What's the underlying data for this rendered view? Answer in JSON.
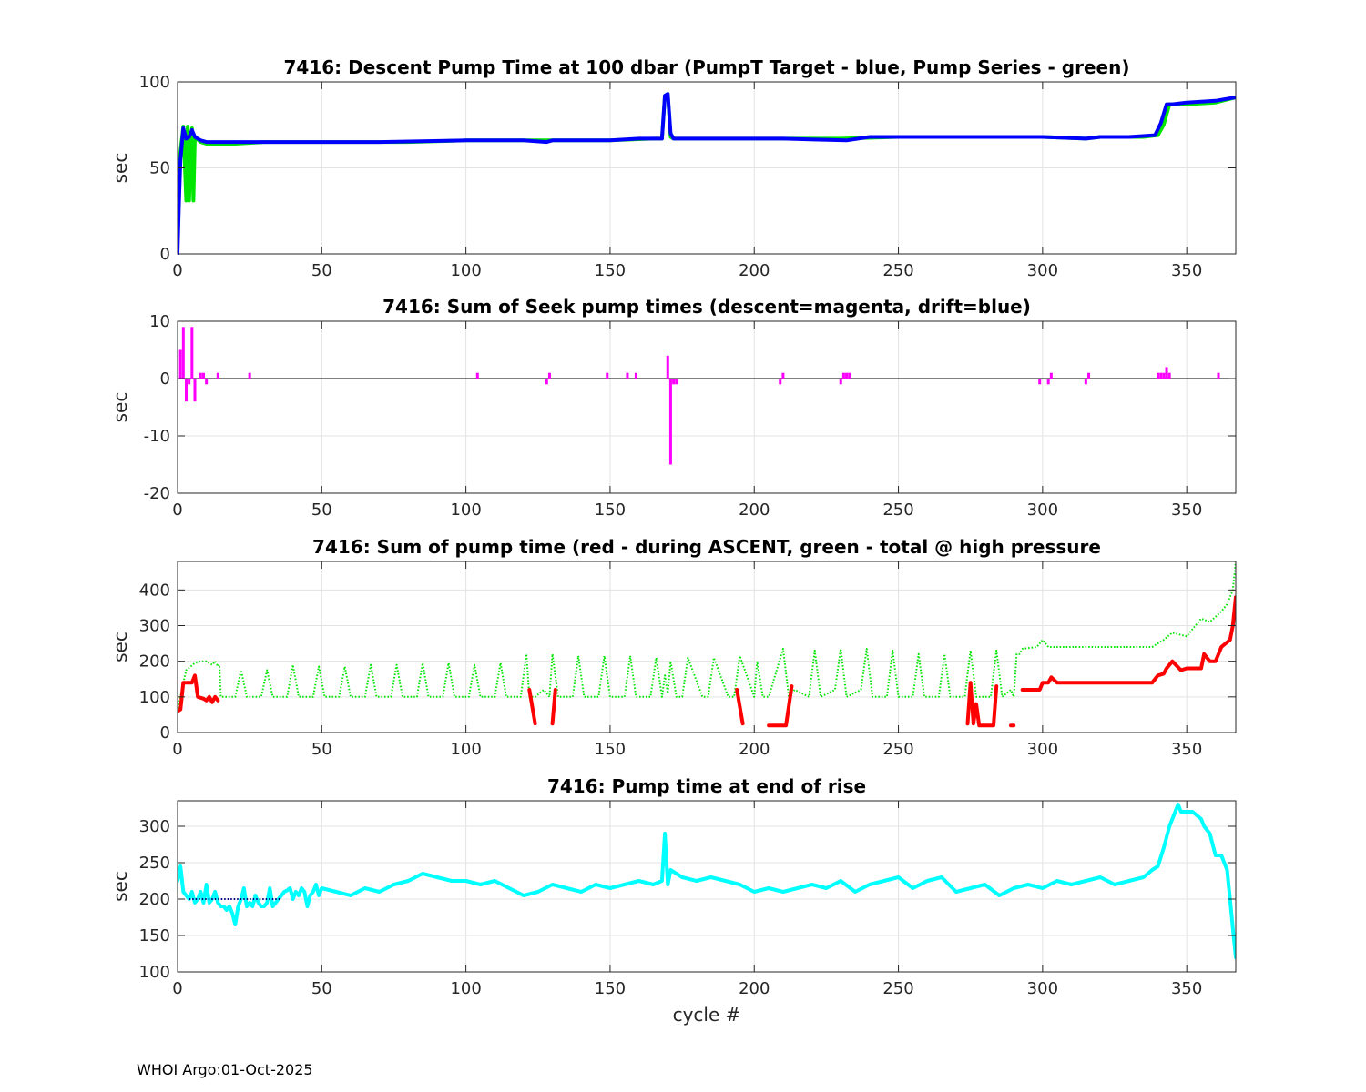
{
  "footer": "WHOI Argo:01-Oct-2025",
  "chart_data": [
    {
      "type": "line",
      "title": "7416: Descent Pump Time at 100 dbar (PumpT Target - blue, Pump Series - green)",
      "xlabel": "",
      "ylabel": "sec",
      "xlim": [
        0,
        367
      ],
      "ylim": [
        0,
        100
      ],
      "xticks": [
        0,
        50,
        100,
        150,
        200,
        250,
        300,
        350
      ],
      "yticks": [
        0,
        50,
        100
      ],
      "grid": true,
      "series": [
        {
          "color": "#00e600",
          "x": [
            0,
            1,
            2,
            3,
            3.5,
            4,
            5,
            5.5,
            6,
            8,
            10,
            20,
            30,
            50,
            80,
            100,
            120,
            150,
            165,
            168,
            169,
            170,
            171,
            172,
            180,
            200,
            230,
            250,
            280,
            300,
            315,
            320,
            335,
            340,
            342,
            344,
            350,
            360,
            367
          ],
          "y": [
            30,
            60,
            74,
            31,
            74,
            31,
            73,
            31,
            68,
            65,
            64,
            64,
            65,
            65,
            65,
            66,
            66,
            66,
            67,
            67,
            92,
            93,
            68,
            67,
            67,
            67,
            67,
            68,
            68,
            68,
            67,
            68,
            68,
            69,
            75,
            87,
            87,
            88,
            91
          ]
        },
        {
          "color": "#0000ff",
          "x": [
            0,
            0.5,
            1,
            2,
            3,
            4,
            5,
            6,
            8,
            10,
            20,
            30,
            50,
            70,
            100,
            120,
            128,
            130,
            150,
            160,
            168,
            169,
            170,
            171,
            172,
            180,
            200,
            210,
            232,
            240,
            260,
            280,
            300,
            315,
            320,
            330,
            339,
            341,
            343,
            345,
            350,
            360,
            367
          ],
          "y": [
            0,
            30,
            55,
            73,
            67,
            68,
            72,
            68,
            66,
            65,
            65,
            65,
            65,
            65,
            66,
            66,
            65,
            66,
            66,
            67,
            67,
            92,
            93,
            70,
            67,
            67,
            67,
            67,
            66,
            68,
            68,
            68,
            68,
            67,
            68,
            68,
            69,
            76,
            87,
            87,
            88,
            89,
            91
          ]
        }
      ]
    },
    {
      "type": "bar",
      "title": "7416: Sum of Seek pump times (descent=magenta, drift=blue)",
      "xlabel": "",
      "ylabel": "sec",
      "xlim": [
        0,
        367
      ],
      "ylim": [
        -20,
        10
      ],
      "xticks": [
        0,
        50,
        100,
        150,
        200,
        250,
        300,
        350
      ],
      "yticks": [
        -20,
        -10,
        0,
        10
      ],
      "grid": true,
      "series": [
        {
          "name": "descent",
          "color": "#ff00ff",
          "x": [
            1,
            2,
            3,
            4,
            5,
            6,
            8,
            9,
            10,
            14,
            25,
            104,
            128,
            129,
            149,
            156,
            159,
            170,
            171,
            172,
            173,
            209,
            210,
            230,
            231,
            232,
            233,
            299,
            302,
            303,
            315,
            316,
            340,
            341,
            342,
            343,
            344,
            361
          ],
          "y": [
            5,
            9,
            -4,
            -1,
            9,
            -4,
            1,
            1,
            -1,
            1,
            1,
            1,
            -1,
            1,
            1,
            1,
            1,
            4,
            -15,
            -1,
            -1,
            -1,
            1,
            -1,
            1,
            1,
            1,
            -1,
            -1,
            1,
            -1,
            1,
            1,
            1,
            1,
            2,
            1,
            1
          ]
        }
      ]
    },
    {
      "type": "line",
      "title": "7416: Sum of pump time (red - during ASCENT, green - total @ high pressure",
      "xlabel": "",
      "ylabel": "sec",
      "xlim": [
        0,
        367
      ],
      "ylim": [
        0,
        480
      ],
      "xticks": [
        0,
        50,
        100,
        150,
        200,
        250,
        300,
        350
      ],
      "yticks": [
        0,
        100,
        200,
        300,
        400
      ],
      "grid": true,
      "series": [
        {
          "name": "total @ high pressure",
          "color": "#00e600",
          "dotted": true,
          "x": [
            0,
            2,
            3,
            6,
            8,
            10,
            12,
            13,
            14,
            14.5,
            15,
            20,
            22,
            24,
            29,
            31,
            33,
            38,
            40,
            42,
            47,
            49,
            51,
            56,
            58,
            60,
            65,
            67,
            69,
            74,
            76,
            78,
            83,
            85,
            87,
            92,
            94,
            96,
            101,
            103,
            105,
            110,
            112,
            114,
            119,
            121,
            122,
            124,
            127,
            129,
            130,
            132,
            137,
            139,
            141,
            146,
            148,
            150,
            155,
            157,
            159,
            164,
            166,
            168,
            169,
            170,
            171,
            173,
            175,
            177,
            182,
            184,
            186,
            191,
            193,
            195,
            200,
            201,
            203,
            205,
            210,
            212,
            214,
            219,
            221,
            223,
            228,
            230,
            232,
            237,
            239,
            241,
            246,
            248,
            250,
            255,
            257,
            259,
            264,
            266,
            268,
            273,
            275,
            277,
            282,
            284,
            286,
            289,
            290,
            291,
            292,
            293,
            298,
            300,
            302,
            310,
            320,
            338,
            342,
            345,
            350,
            355,
            358,
            362,
            364,
            366,
            367
          ],
          "y": [
            60,
            140,
            175,
            195,
            200,
            200,
            190,
            200,
            185,
            190,
            100,
            100,
            175,
            100,
            100,
            175,
            100,
            100,
            190,
            100,
            100,
            185,
            100,
            100,
            185,
            100,
            100,
            190,
            100,
            100,
            190,
            100,
            100,
            195,
            100,
            100,
            195,
            100,
            100,
            190,
            100,
            100,
            195,
            100,
            100,
            220,
            100,
            100,
            120,
            100,
            220,
            100,
            100,
            215,
            100,
            100,
            215,
            100,
            100,
            215,
            100,
            100,
            210,
            100,
            160,
            110,
            200,
            100,
            100,
            210,
            100,
            100,
            210,
            100,
            100,
            215,
            100,
            200,
            100,
            100,
            235,
            100,
            120,
            100,
            230,
            100,
            120,
            235,
            100,
            120,
            235,
            100,
            100,
            230,
            100,
            100,
            220,
            100,
            100,
            220,
            100,
            100,
            230,
            100,
            100,
            230,
            100,
            120,
            100,
            220,
            220,
            235,
            240,
            260,
            240,
            240,
            240,
            240,
            260,
            280,
            270,
            320,
            310,
            340,
            360,
            400,
            480
          ]
        },
        {
          "name": "during ASCENT",
          "color": "#ff0000",
          "segments": [
            {
              "x": [
                0,
                1,
                2,
                3,
                5,
                6,
                7,
                9,
                10,
                11,
                12,
                13,
                14
              ],
              "y": [
                60,
                65,
                140,
                140,
                140,
                160,
                100,
                95,
                90,
                100,
                85,
                100,
                90
              ]
            },
            {
              "x": [
                122,
                124
              ],
              "y": [
                120,
                25
              ]
            },
            {
              "x": [
                130,
                131
              ],
              "y": [
                25,
                120
              ]
            },
            {
              "x": [
                194,
                196
              ],
              "y": [
                120,
                25
              ]
            },
            {
              "x": [
                205,
                211,
                213
              ],
              "y": [
                20,
                20,
                130
              ]
            },
            {
              "x": [
                274,
                275,
                276,
                277,
                278,
                283,
                284
              ],
              "y": [
                25,
                140,
                25,
                80,
                20,
                20,
                130
              ]
            },
            {
              "x": [
                289,
                290
              ],
              "y": [
                20,
                20
              ]
            },
            {
              "x": [
                293,
                299,
                300,
                302,
                303,
                305,
                310,
                320,
                338,
                340,
                342,
                343,
                345,
                348,
                350,
                355,
                356,
                358,
                360,
                362,
                365,
                366,
                367
              ],
              "y": [
                120,
                120,
                140,
                140,
                155,
                140,
                140,
                140,
                140,
                160,
                165,
                180,
                200,
                175,
                180,
                180,
                220,
                200,
                200,
                240,
                260,
                300,
                380
              ]
            }
          ]
        }
      ]
    },
    {
      "type": "line",
      "title": "7416: Pump time at end of rise",
      "xlabel": "cycle #",
      "ylabel": "sec",
      "xlim": [
        0,
        367
      ],
      "ylim": [
        100,
        335
      ],
      "xticks": [
        0,
        50,
        100,
        150,
        200,
        250,
        300,
        350
      ],
      "yticks": [
        100,
        150,
        200,
        250,
        300
      ],
      "grid": true,
      "series": [
        {
          "color": "#00ffff",
          "x": [
            0,
            1,
            2,
            3,
            4,
            5,
            6,
            7,
            8,
            9,
            10,
            11,
            12,
            13,
            14,
            15,
            16,
            17,
            18,
            19,
            20,
            21,
            22,
            23,
            24,
            25,
            26,
            27,
            28,
            29,
            30,
            31,
            32,
            33,
            34,
            35,
            36,
            37,
            38,
            39,
            40,
            41,
            42,
            43,
            44,
            45,
            46,
            47,
            48,
            49,
            50,
            55,
            60,
            65,
            70,
            75,
            80,
            85,
            90,
            95,
            100,
            105,
            110,
            115,
            120,
            125,
            130,
            135,
            140,
            145,
            150,
            155,
            160,
            165,
            168,
            169,
            170,
            171,
            175,
            180,
            185,
            190,
            195,
            200,
            205,
            210,
            215,
            220,
            225,
            230,
            235,
            240,
            245,
            250,
            255,
            260,
            265,
            270,
            275,
            280,
            285,
            290,
            295,
            300,
            305,
            310,
            315,
            320,
            325,
            330,
            335,
            338,
            340,
            342,
            344,
            346,
            347,
            348,
            350,
            352,
            355,
            356,
            358,
            360,
            362,
            364,
            365,
            366,
            367
          ],
          "y": [
            225,
            245,
            210,
            205,
            200,
            210,
            195,
            200,
            210,
            195,
            220,
            195,
            200,
            210,
            195,
            190,
            190,
            185,
            190,
            180,
            165,
            190,
            200,
            215,
            190,
            195,
            190,
            205,
            195,
            190,
            190,
            195,
            215,
            190,
            195,
            200,
            205,
            210,
            212,
            215,
            200,
            210,
            205,
            215,
            210,
            190,
            205,
            210,
            220,
            205,
            215,
            210,
            205,
            215,
            210,
            220,
            225,
            235,
            230,
            225,
            225,
            220,
            225,
            215,
            205,
            210,
            220,
            215,
            210,
            220,
            215,
            220,
            225,
            220,
            225,
            290,
            220,
            240,
            230,
            225,
            230,
            225,
            220,
            210,
            215,
            210,
            215,
            220,
            215,
            225,
            210,
            220,
            225,
            230,
            215,
            225,
            230,
            210,
            215,
            220,
            205,
            215,
            220,
            215,
            225,
            220,
            225,
            230,
            220,
            225,
            230,
            240,
            245,
            270,
            300,
            320,
            330,
            320,
            320,
            320,
            310,
            300,
            290,
            260,
            260,
            240,
            200,
            160,
            120
          ]
        },
        {
          "color": "#000080",
          "dotted": true,
          "x": [
            4,
            36
          ],
          "y": [
            200,
            200
          ]
        }
      ]
    }
  ]
}
